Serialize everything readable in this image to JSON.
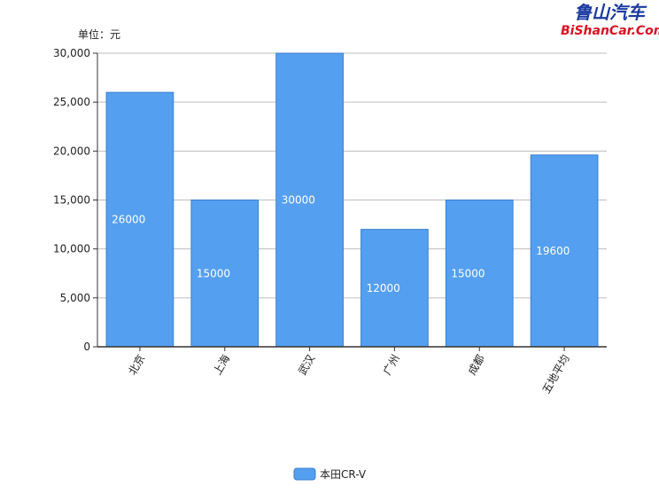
{
  "watermark": {
    "title": "鲁山汽车",
    "site": "BiShanCar.Com"
  },
  "colors": {
    "bar": "#559ff0",
    "bar_stroke": "#3a7fd0",
    "grid": "#bdbdbd",
    "axis": "#333333"
  },
  "chart_data": {
    "type": "bar",
    "unit_label": "单位：元",
    "categories": [
      "北京",
      "上海",
      "武汉",
      "广州",
      "成都",
      "五地平均"
    ],
    "series": [
      {
        "name": "本田CR-V",
        "values": [
          26000,
          15000,
          30000,
          12000,
          15000,
          19600
        ]
      }
    ],
    "data_labels": [
      "26000",
      "15000",
      "30000",
      "12000",
      "15000",
      "19600"
    ],
    "y_ticks": [
      "0",
      "5,000",
      "10,000",
      "15,000",
      "20,000",
      "25,000",
      "30,000"
    ],
    "ylim": [
      0,
      30000
    ],
    "grid": true,
    "legend_position": "bottom-center"
  }
}
